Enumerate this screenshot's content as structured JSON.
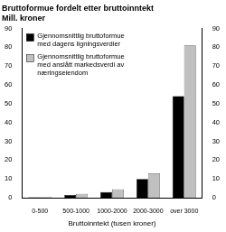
{
  "chart_data": {
    "type": "bar",
    "title": "Bruttoformue fordelt etter bruttoinntekt",
    "subtitle": "Mill. kroner",
    "x_label": "Bruttoinntekt (tusen kroner)",
    "categories": [
      "0-500",
      "500-1000",
      "1000-2000",
      "2000-3000",
      "over 3000"
    ],
    "series": [
      {
        "name": "Gjennomsnittlig bruttoformue med dagens ligningsverdier",
        "color": "#000000",
        "values": [
          0.3,
          1.5,
          3,
          10,
          54
        ]
      },
      {
        "name": "Gjennomsnittlig bruttoformue med anslått markedsverdi av næringseiendom",
        "color": "#c0c0c0",
        "values": [
          0.4,
          2,
          4.5,
          13,
          81
        ]
      }
    ],
    "ylim": [
      0,
      90
    ],
    "yticks": [
      0,
      10,
      20,
      30,
      40,
      50,
      60,
      70,
      80,
      90
    ],
    "y2lim": [
      0,
      90
    ],
    "y2ticks": [
      0,
      10,
      20,
      30,
      40,
      50,
      60,
      70,
      80,
      90
    ],
    "grid": false,
    "legend": "top-left"
  }
}
